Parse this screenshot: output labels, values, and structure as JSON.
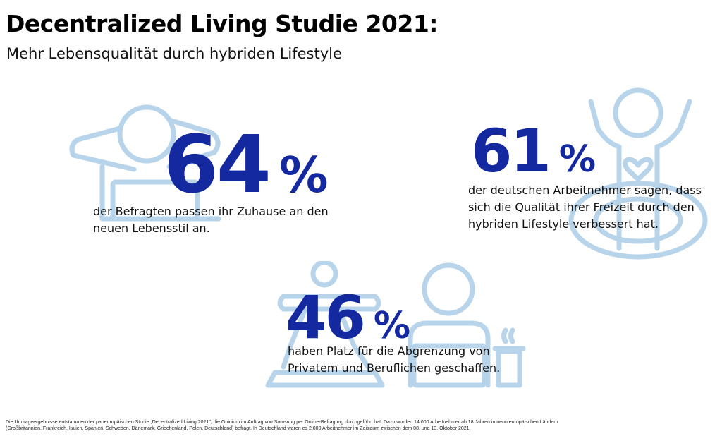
{
  "header": {
    "title": "Decentralized Living Studie 2021:",
    "subtitle": "Mehr Lebensqualität durch hybriden Lifestyle"
  },
  "colors": {
    "accent": "#1428a0",
    "illustration": "#b7d4ea"
  },
  "stats": [
    {
      "value": "64",
      "unit": "%",
      "line1": "der Befragten passen ihr Zuhause an den",
      "line2": "neuen Lebensstil an.",
      "icon": "relaxing-person-laptop-icon"
    },
    {
      "value": "61",
      "unit": "%",
      "line1": "der deutschen Arbeitnehmer sagen, dass",
      "line2": "sich die Qualität ihrer Freizeit durch den",
      "line3": "hybriden Lifestyle verbessert hat.",
      "icon": "cheering-person-heart-icon"
    },
    {
      "value": "46",
      "unit": "%",
      "line1": "haben Platz für die Abgrenzung von",
      "line2": "Privatem und Beruflichen geschaffen.",
      "icon": "yoga-and-work-desk-icon"
    }
  ],
  "footnote": {
    "line1": "Die Umfrageergebnisse entstammen der paneuropäischen Studie „Decentralized Living 2021\", die Opinium im Auftrag von Samsung per Online-Befragung durchgeführt hat. Dazu wurden 14.000 Arbeitnehmer ab 18 Jahren in neun europäischen Ländern",
    "line2": "(Großbritannien, Frankreich, Italien, Spanien, Schweden, Dänemark, Griechenland, Polen, Deutschland) befragt. In Deutschland waren es 2.000 Arbeitnehmer im Zeitraum zwischen dem 08. und 13. Oktober 2021."
  }
}
